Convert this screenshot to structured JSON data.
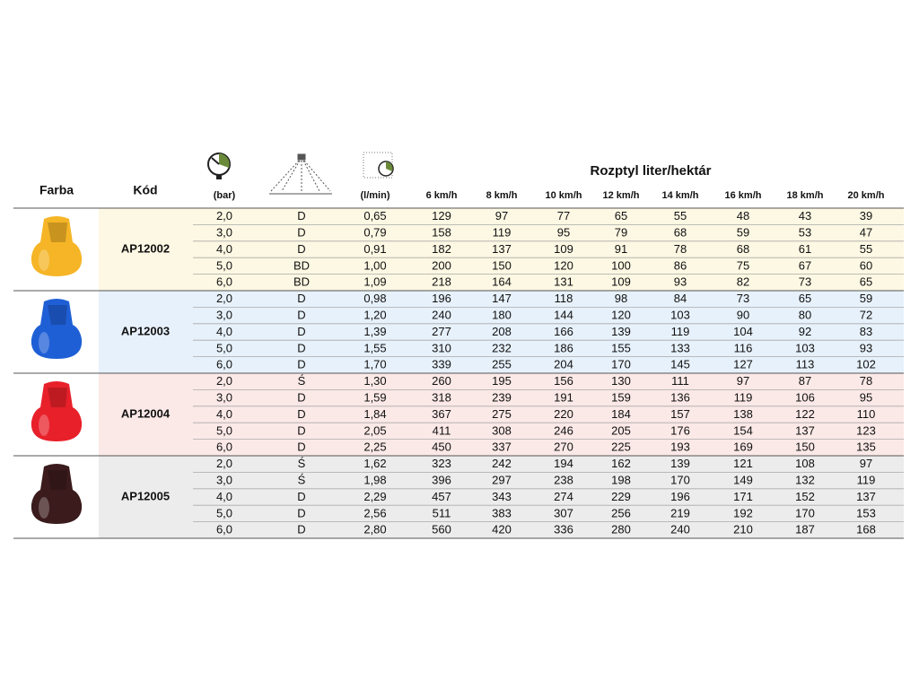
{
  "header": {
    "color": "Farba",
    "code": "Kód",
    "pressure": "(bar)",
    "flow": "(l/min)",
    "rate": "Rozptyl liter/hektár",
    "speeds": [
      "6 km/h",
      "8 km/h",
      "10 km/h",
      "12 km/h",
      "14 km/h",
      "16 km/h",
      "18 km/h",
      "20 km/h"
    ]
  },
  "groups": [
    {
      "code": "AP12002",
      "rows": [
        [
          "2,0",
          "D",
          "0,65",
          129,
          97,
          77,
          65,
          55,
          48,
          43,
          39
        ],
        [
          "3,0",
          "D",
          "0,79",
          158,
          119,
          95,
          79,
          68,
          59,
          53,
          47
        ],
        [
          "4,0",
          "D",
          "0,91",
          182,
          137,
          109,
          91,
          78,
          68,
          61,
          55
        ],
        [
          "5,0",
          "BD",
          "1,00",
          200,
          150,
          120,
          100,
          86,
          75,
          67,
          60
        ],
        [
          "6,0",
          "BD",
          "1,09",
          218,
          164,
          131,
          109,
          93,
          82,
          73,
          65
        ]
      ]
    },
    {
      "code": "AP12003",
      "rows": [
        [
          "2,0",
          "D",
          "0,98",
          196,
          147,
          118,
          98,
          84,
          73,
          65,
          59
        ],
        [
          "3,0",
          "D",
          "1,20",
          240,
          180,
          144,
          120,
          103,
          90,
          80,
          72
        ],
        [
          "4,0",
          "D",
          "1,39",
          277,
          208,
          166,
          139,
          119,
          104,
          92,
          83
        ],
        [
          "5,0",
          "D",
          "1,55",
          310,
          232,
          186,
          155,
          133,
          116,
          103,
          93
        ],
        [
          "6,0",
          "D",
          "1,70",
          339,
          255,
          204,
          170,
          145,
          127,
          113,
          102
        ]
      ]
    },
    {
      "code": "AP12004",
      "rows": [
        [
          "2,0",
          "Ś",
          "1,30",
          260,
          195,
          156,
          130,
          111,
          97,
          87,
          78
        ],
        [
          "3,0",
          "D",
          "1,59",
          318,
          239,
          191,
          159,
          136,
          119,
          106,
          95
        ],
        [
          "4,0",
          "D",
          "1,84",
          367,
          275,
          220,
          184,
          157,
          138,
          122,
          110
        ],
        [
          "5,0",
          "D",
          "2,05",
          411,
          308,
          246,
          205,
          176,
          154,
          137,
          123
        ],
        [
          "6,0",
          "D",
          "2,25",
          450,
          337,
          270,
          225,
          193,
          169,
          150,
          135
        ]
      ]
    },
    {
      "code": "AP12005",
      "rows": [
        [
          "2,0",
          "Ś",
          "1,62",
          323,
          242,
          194,
          162,
          139,
          121,
          108,
          97
        ],
        [
          "3,0",
          "Ś",
          "1,98",
          396,
          297,
          238,
          198,
          170,
          149,
          132,
          119
        ],
        [
          "4,0",
          "D",
          "2,29",
          457,
          343,
          274,
          229,
          196,
          171,
          152,
          137
        ],
        [
          "5,0",
          "D",
          "2,56",
          511,
          383,
          307,
          256,
          219,
          192,
          170,
          153
        ],
        [
          "6,0",
          "D",
          "2,80",
          560,
          420,
          336,
          280,
          240,
          210,
          187,
          168
        ]
      ]
    }
  ]
}
